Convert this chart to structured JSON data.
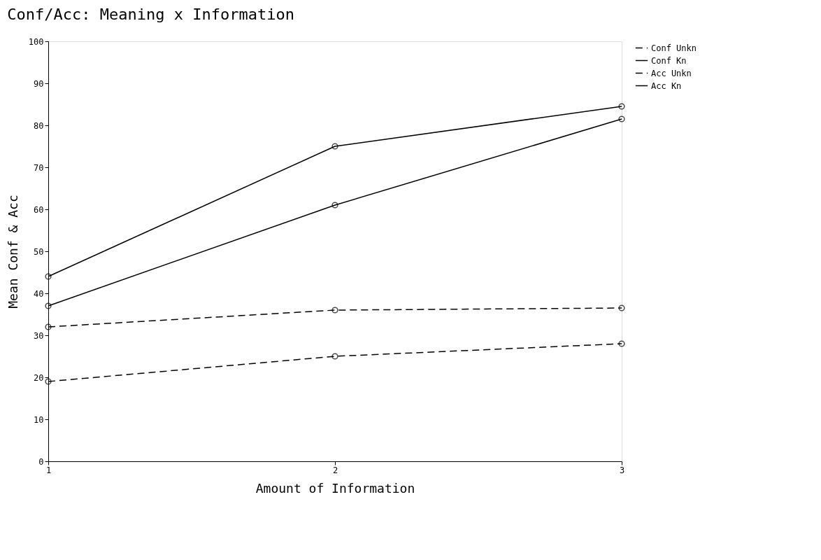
{
  "chart_data": {
    "type": "line",
    "title": "Conf/Acc: Meaning x Information",
    "xlabel": "Amount of Information",
    "ylabel": "Mean Conf & Acc",
    "x": [
      1,
      2,
      3
    ],
    "series": [
      {
        "name": "Conf Unkn",
        "color": "#000000",
        "line_style": "dashed",
        "values": [
          32,
          36,
          36.5
        ]
      },
      {
        "name": "Conf Kn",
        "color": "#000000",
        "line_style": "solid",
        "values": [
          37,
          61,
          81.5
        ]
      },
      {
        "name": "Acc Unkn",
        "color": "#000000",
        "line_style": "dashed",
        "values": [
          19,
          25,
          28
        ]
      },
      {
        "name": "Acc Kn",
        "color": "#000000",
        "line_style": "solid",
        "values": [
          44,
          75,
          84.5
        ]
      }
    ],
    "xlim": [
      1,
      3
    ],
    "xticks": [
      1,
      2,
      3
    ],
    "ylim": [
      0,
      100
    ],
    "yticks": [
      0,
      10,
      20,
      30,
      40,
      50,
      60,
      70,
      80,
      90,
      100
    ],
    "grid": false,
    "legend": "right",
    "marker": "circle"
  }
}
